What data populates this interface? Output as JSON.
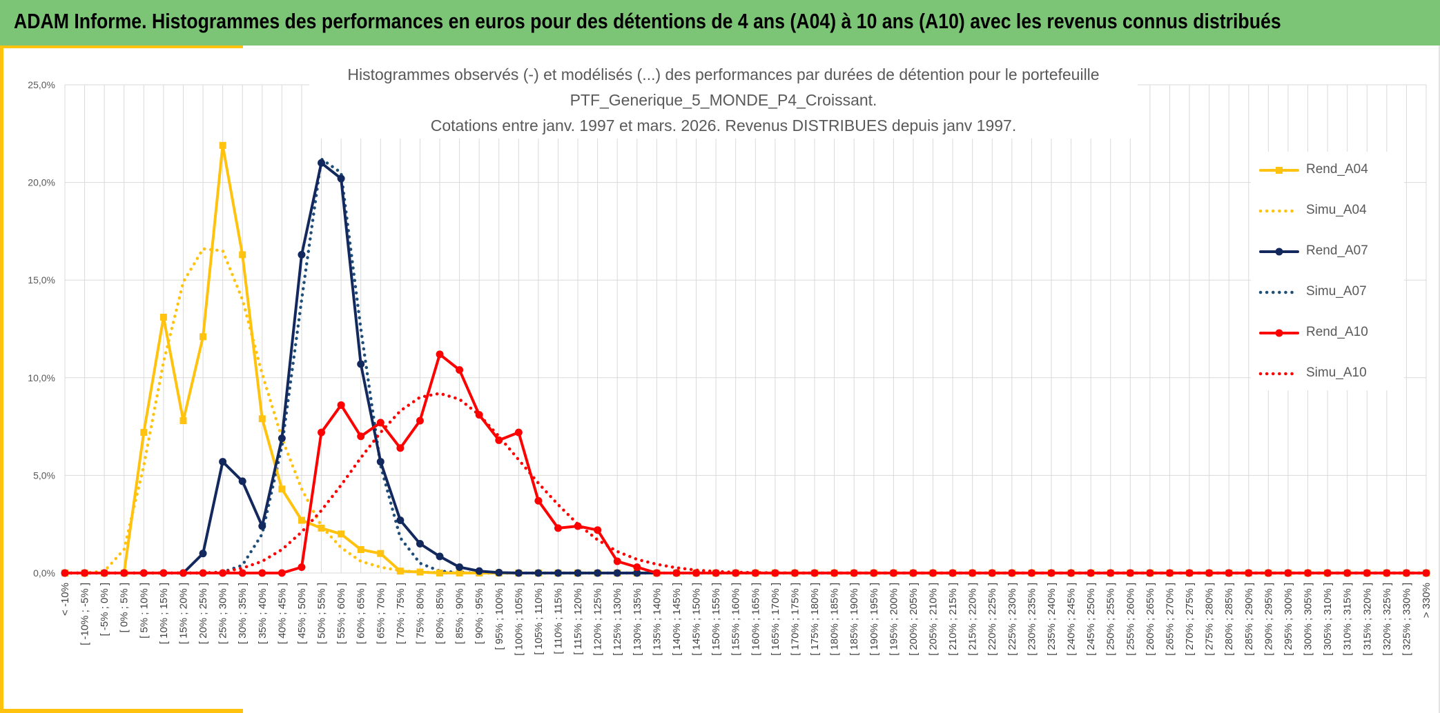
{
  "header": {
    "title": "ADAM Informe. Histogrammes des performances en euros pour des détentions de 4 ans (A04) à 10 ans (A10) avec les revenus connus distribués"
  },
  "chart_data": {
    "type": "line",
    "title_lines": [
      "Histogrammes observés (-) et modélisés (...) des performances par durées de détention pour le portefeuille",
      "PTF_Generique_5_MONDE_P4_Croissant.",
      "Cotations entre janv. 1997 et mars. 2026. Revenus DISTRIBUES depuis janv 1997."
    ],
    "xlabel": "",
    "ylabel": "",
    "ylim": [
      0,
      25
    ],
    "y_ticks": [
      "0,0%",
      "5,0%",
      "10,0%",
      "15,0%",
      "20,0%",
      "25,0%"
    ],
    "grid": true,
    "legend_position": "right",
    "categories": [
      "< -10%",
      "[ -10% ; -5% ]",
      "[ -5% ; 0% ]",
      "[ 0% ; 5% ]",
      "[ 5% ; 10% ]",
      "[ 10% ; 15% ]",
      "[ 15% ; 20% ]",
      "[ 20% ; 25% ]",
      "[ 25% ; 30% ]",
      "[ 30% ; 35% ]",
      "[ 35% ; 40% ]",
      "[ 40% ; 45% ]",
      "[ 45% ; 50% ]",
      "[ 50% ; 55% ]",
      "[ 55% ; 60% ]",
      "[ 60% ; 65% ]",
      "[ 65% ; 70% ]",
      "[ 70% ; 75% ]",
      "[ 75% ; 80% ]",
      "[ 80% ; 85% ]",
      "[ 85% ; 90% ]",
      "[ 90% ; 95% ]",
      "[ 95% ; 100% ]",
      "[ 100% ; 105% ]",
      "[ 105% ; 110% ]",
      "[ 110% ; 115% ]",
      "[ 115% ; 120% ]",
      "[ 120% ; 125% ]",
      "[ 125% ; 130% ]",
      "[ 130% ; 135% ]",
      "[ 135% ; 140% ]",
      "[ 140% ; 145% ]",
      "[ 145% ; 150% ]",
      "[ 150% ; 155% ]",
      "[ 155% ; 160% ]",
      "[ 160% ; 165% ]",
      "[ 165% ; 170% ]",
      "[ 170% ; 175% ]",
      "[ 175% ; 180% ]",
      "[ 180% ; 185% ]",
      "[ 185% ; 190% ]",
      "[ 190% ; 195% ]",
      "[ 195% ; 200% ]",
      "[ 200% ; 205% ]",
      "[ 205% ; 210% ]",
      "[ 210% ; 215% ]",
      "[ 215% ; 220% ]",
      "[ 220% ; 225% ]",
      "[ 225% ; 230% ]",
      "[ 230% ; 235% ]",
      "[ 235% ; 240% ]",
      "[ 240% ; 245% ]",
      "[ 245% ; 250% ]",
      "[ 250% ; 255% ]",
      "[ 255% ; 260% ]",
      "[ 260% ; 265% ]",
      "[ 265% ; 270% ]",
      "[ 270% ; 275% ]",
      "[ 275% ; 280% ]",
      "[ 280% ; 285% ]",
      "[ 285% ; 290% ]",
      "[ 290% ; 295% ]",
      "[ 295% ; 300% ]",
      "[ 300% ; 305% ]",
      "[ 305% ; 310% ]",
      "[ 310% ; 315% ]",
      "[ 315% ; 320% ]",
      "[ 320% ; 325% ]",
      "[ 325% ; 330% ]",
      "> 330%"
    ],
    "series": [
      {
        "name": "Rend_A04",
        "style": "solid",
        "marker": "square",
        "color": "#ffc20e",
        "values": [
          0,
          0,
          0,
          0,
          7.2,
          13.1,
          7.8,
          12.1,
          21.9,
          16.3,
          7.9,
          4.3,
          2.7,
          2.3,
          2.0,
          1.2,
          1.0,
          0.1,
          0.05,
          0,
          0,
          0,
          0,
          0,
          0,
          0,
          0,
          0,
          0,
          0,
          0,
          0,
          0,
          0,
          0,
          0,
          0,
          0,
          0,
          0,
          0,
          0,
          0,
          0,
          0,
          0,
          0,
          0,
          0,
          0,
          0,
          0,
          0,
          0,
          0,
          0,
          0,
          0,
          0,
          0,
          0,
          0,
          0,
          0,
          0,
          0,
          0,
          0,
          0,
          0
        ]
      },
      {
        "name": "Simu_A04",
        "style": "dotted",
        "marker": "none",
        "color": "#ffc20e",
        "values": [
          0,
          0,
          0.1,
          1.2,
          5.5,
          10.8,
          14.9,
          16.6,
          16.5,
          14.0,
          10.2,
          6.9,
          4.3,
          2.4,
          1.3,
          0.6,
          0.3,
          0.12,
          0.05,
          0.02,
          0.01,
          0,
          0,
          0,
          0,
          0,
          0,
          0,
          0,
          0,
          0,
          0,
          0,
          0,
          0,
          0,
          0,
          0,
          0,
          0,
          0,
          0,
          0,
          0,
          0,
          0,
          0,
          0,
          0,
          0,
          0,
          0,
          0,
          0,
          0,
          0,
          0,
          0,
          0,
          0,
          0,
          0,
          0,
          0,
          0,
          0,
          0,
          0,
          0,
          0
        ]
      },
      {
        "name": "Rend_A07",
        "style": "solid",
        "marker": "circle",
        "color": "#13295e",
        "values": [
          0,
          0,
          0,
          0,
          0,
          0,
          0,
          1.0,
          5.7,
          4.7,
          2.4,
          6.9,
          16.3,
          21.0,
          20.2,
          10.7,
          5.7,
          2.7,
          1.5,
          0.85,
          0.3,
          0.1,
          0.02,
          0,
          0,
          0,
          0,
          0,
          0,
          0,
          0,
          0,
          0,
          0,
          0,
          0,
          0,
          0,
          0,
          0,
          0,
          0,
          0,
          0,
          0,
          0,
          0,
          0,
          0,
          0,
          0,
          0,
          0,
          0,
          0,
          0,
          0,
          0,
          0,
          0,
          0,
          0,
          0,
          0,
          0,
          0,
          0,
          0,
          0,
          0
        ]
      },
      {
        "name": "Simu_A07",
        "style": "dotted",
        "marker": "none",
        "color": "#1f4e79",
        "values": [
          0,
          0,
          0,
          0,
          0,
          0,
          0,
          0,
          0.05,
          0.4,
          2.0,
          6.5,
          14.0,
          21.2,
          20.5,
          12.5,
          5.5,
          1.8,
          0.5,
          0.1,
          0.02,
          0,
          0,
          0,
          0,
          0,
          0,
          0,
          0,
          0,
          0,
          0,
          0,
          0,
          0,
          0,
          0,
          0,
          0,
          0,
          0,
          0,
          0,
          0,
          0,
          0,
          0,
          0,
          0,
          0,
          0,
          0,
          0,
          0,
          0,
          0,
          0,
          0,
          0,
          0,
          0,
          0,
          0,
          0,
          0,
          0,
          0,
          0,
          0,
          0
        ]
      },
      {
        "name": "Rend_A10",
        "style": "solid",
        "marker": "circle",
        "color": "#ff0000",
        "values": [
          0,
          0,
          0,
          0,
          0,
          0,
          0,
          0,
          0,
          0,
          0,
          0,
          0.3,
          7.2,
          8.6,
          7.0,
          7.7,
          6.4,
          7.8,
          11.2,
          10.4,
          8.1,
          6.8,
          7.2,
          3.7,
          2.3,
          2.4,
          2.2,
          0.6,
          0.3,
          0,
          0,
          0,
          0,
          0,
          0,
          0,
          0,
          0,
          0,
          0,
          0,
          0,
          0,
          0,
          0,
          0,
          0,
          0,
          0,
          0,
          0,
          0,
          0,
          0,
          0,
          0,
          0,
          0,
          0,
          0,
          0,
          0,
          0,
          0,
          0,
          0,
          0,
          0,
          0
        ]
      },
      {
        "name": "Simu_A10",
        "style": "dotted",
        "marker": "none",
        "color": "#ff0000",
        "values": [
          0,
          0,
          0,
          0,
          0,
          0,
          0,
          0,
          0.05,
          0.25,
          0.6,
          1.2,
          2.1,
          3.2,
          4.5,
          5.9,
          7.2,
          8.3,
          9.0,
          9.2,
          8.9,
          8.1,
          7.0,
          5.8,
          4.6,
          3.5,
          2.5,
          1.7,
          1.1,
          0.7,
          0.45,
          0.27,
          0.15,
          0.08,
          0.04,
          0.02,
          0.01,
          0,
          0,
          0,
          0,
          0,
          0,
          0,
          0,
          0,
          0,
          0,
          0,
          0,
          0,
          0,
          0,
          0,
          0,
          0,
          0,
          0,
          0,
          0,
          0,
          0,
          0,
          0,
          0,
          0,
          0,
          0,
          0,
          0
        ]
      }
    ]
  }
}
